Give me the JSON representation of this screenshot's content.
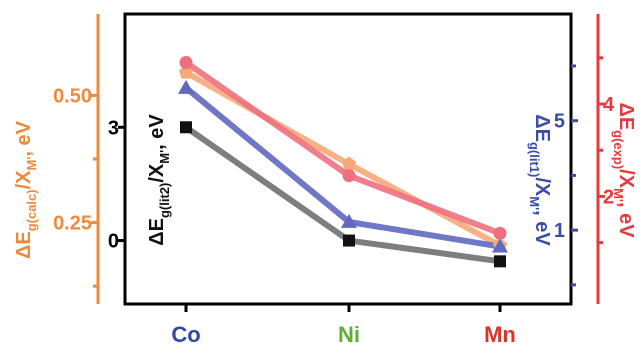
{
  "chart_data": {
    "type": "line",
    "categories": [
      "Co",
      "Ni",
      "Mn"
    ],
    "category_colors": [
      "#2f4aa0",
      "#5fae3a",
      "#d8352a"
    ],
    "axes": {
      "calc": {
        "side": "left-outer",
        "color": "#f0893a",
        "title_main": "ΔE",
        "title_sub": "g(calc)",
        "title_tail": "/X",
        "title_sub2": "M'",
        "title_end": ", eV",
        "ylim": [
          0.09,
          0.66
        ],
        "ticks": [
          0.25,
          0.5
        ],
        "tick_labels": [
          "0.25",
          "0.50"
        ],
        "minor_ticks": [
          0.375,
          0.125
        ]
      },
      "lit2": {
        "side": "left-inner",
        "color": "#111111",
        "title_main": "ΔE",
        "title_sub": "g(lit2)",
        "title_tail": "/X",
        "title_sub2": "M'",
        "title_end": ", eV",
        "ylim": [
          -1.68,
          6.0
        ],
        "ticks": [
          0,
          3
        ],
        "tick_labels": [
          "0",
          "3"
        ]
      },
      "lit1": {
        "side": "right-inner",
        "color": "#3a4ea8",
        "title_main": "ΔE",
        "title_sub": "g(lit1)",
        "title_tail": "/X",
        "title_sub2": "M'",
        "title_end": ", eV",
        "ylim": [
          -1.7,
          8.9
        ],
        "ticks": [
          1,
          5
        ],
        "tick_labels": [
          "1",
          "5"
        ],
        "minor_ticks": [
          3,
          7,
          -1
        ]
      },
      "exp": {
        "side": "right-outer",
        "color": "#e8383d",
        "title_main": "ΔE",
        "title_sub": "g(exp)",
        "title_tail": "/X",
        "title_sub2": "M'",
        "title_end": ", eV",
        "ylim": [
          -0.33,
          5.95
        ],
        "ticks": [
          2,
          4
        ],
        "tick_labels": [
          "2",
          "4"
        ],
        "minor_ticks": [
          1,
          3,
          5
        ]
      }
    },
    "series": [
      {
        "axis": "calc",
        "color": "#f6a878",
        "marker": "pentagon",
        "values": [
          0.545,
          0.365,
          0.205
        ]
      },
      {
        "axis": "lit2",
        "color": "#707070",
        "marker": "square",
        "values": [
          3.0,
          0.0,
          -0.55
        ]
      },
      {
        "axis": "lit1",
        "color": "#6068c0",
        "marker": "triangle",
        "values": [
          6.2,
          1.3,
          0.4
        ]
      },
      {
        "axis": "exp",
        "color": "#ee7080",
        "marker": "circle",
        "values": [
          4.9,
          2.45,
          1.2
        ]
      }
    ]
  }
}
